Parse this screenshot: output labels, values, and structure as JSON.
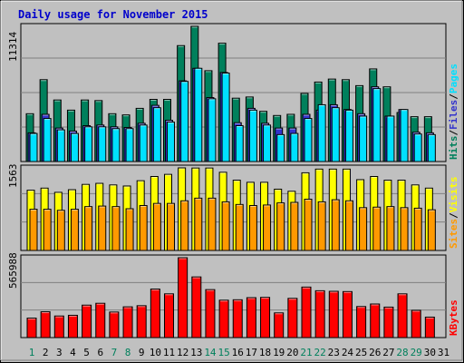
{
  "chart_data": {
    "type": "bar",
    "title": "Daily usage for November 2015",
    "categories": [
      "1",
      "2",
      "3",
      "4",
      "5",
      "6",
      "7",
      "8",
      "9",
      "10",
      "11",
      "12",
      "13",
      "14",
      "15",
      "16",
      "17",
      "18",
      "19",
      "20",
      "21",
      "22",
      "23",
      "24",
      "25",
      "26",
      "27",
      "28",
      "29",
      "30",
      "31"
    ],
    "weekend_days": [
      "1",
      "7",
      "8",
      "14",
      "15",
      "21",
      "22",
      "28",
      "29"
    ],
    "colors": {
      "hits": "#00805c",
      "files": "#3333cc",
      "pages": "#00e0ff",
      "visits": "#ffff00",
      "sites": "#ff9900",
      "kbytes": "#ff0000",
      "weekday_label": "#000000",
      "weekend_label": "#00805c",
      "title": "#0000cc"
    },
    "panels": [
      {
        "id": "requests",
        "ymax_label": "11314",
        "ylim": [
          0,
          11314
        ],
        "legend": [
          {
            "text": "Hits",
            "color": "#00805c"
          },
          {
            "text": "Files",
            "color": "#3333cc"
          },
          {
            "text": "Pages",
            "color": "#00e0ff"
          }
        ],
        "series": [
          {
            "name": "Hits",
            "values": [
              4000,
              6850,
              5150,
              4300,
              5150,
              5100,
              4000,
              3900,
              4450,
              5200,
              5200,
              9700,
              11314,
              7600,
              9900,
              5300,
              5400,
              4200,
              3850,
              3950,
              5700,
              6650,
              6900,
              6850,
              6350,
              7750,
              6250,
              4100,
              3750,
              3750,
              0
            ]
          },
          {
            "name": "Files",
            "values": [
              2400,
              3950,
              2800,
              2550,
              3000,
              3050,
              2900,
              2850,
              3200,
              4700,
              3450,
              6750,
              7800,
              5350,
              7450,
              3250,
              4450,
              3200,
              2800,
              2800,
              3950,
              4300,
              4750,
              4350,
              4000,
              6250,
              3800,
              4350,
              2450,
              2400,
              0
            ]
          },
          {
            "name": "Pages",
            "values": [
              2350,
              3600,
              2650,
              2350,
              2900,
              2900,
              2750,
              2750,
              3050,
              4500,
              3300,
              6700,
              7800,
              5250,
              7400,
              3000,
              4300,
              3050,
              2250,
              2350,
              3600,
              4750,
              4500,
              4300,
              3800,
              6100,
              3800,
              4350,
              2300,
              2250,
              0
            ]
          }
        ]
      },
      {
        "id": "visits",
        "ymax_label": "1563",
        "ylim": [
          0,
          1563
        ],
        "legend": [
          {
            "text": "Sites",
            "color": "#ff9900"
          },
          {
            "text": "Visits",
            "color": "#ffff00"
          }
        ],
        "series": [
          {
            "name": "Visits",
            "values": [
              1140,
              1180,
              1100,
              1150,
              1250,
              1270,
              1240,
              1220,
              1320,
              1400,
              1440,
              1563,
              1560,
              1560,
              1480,
              1330,
              1290,
              1290,
              1160,
              1120,
              1470,
              1540,
              1540,
              1540,
              1340,
              1400,
              1330,
              1330,
              1240,
              1180,
              0
            ]
          },
          {
            "name": "Sites",
            "values": [
              780,
              780,
              760,
              780,
              830,
              840,
              830,
              790,
              850,
              890,
              890,
              940,
              990,
              990,
              920,
              870,
              850,
              860,
              900,
              910,
              970,
              920,
              960,
              940,
              810,
              820,
              830,
              810,
              800,
              770,
              0
            ]
          }
        ]
      },
      {
        "id": "kbytes",
        "ymax_label": "565988",
        "ylim": [
          0,
          565988
        ],
        "legend": [
          {
            "text": "KBytes",
            "color": "#ff0000"
          }
        ],
        "series": [
          {
            "name": "KBytes",
            "values": [
              138000,
              183000,
              153000,
              158000,
              230000,
              243000,
              181000,
              218000,
              226000,
              344000,
              310000,
              565988,
              430000,
              340000,
              265000,
              268000,
              283000,
              285000,
              175000,
              278000,
              358000,
              332000,
              328000,
              326000,
              220000,
              238000,
              216000,
              310000,
              193000,
              145000,
              0
            ]
          }
        ]
      }
    ]
  }
}
